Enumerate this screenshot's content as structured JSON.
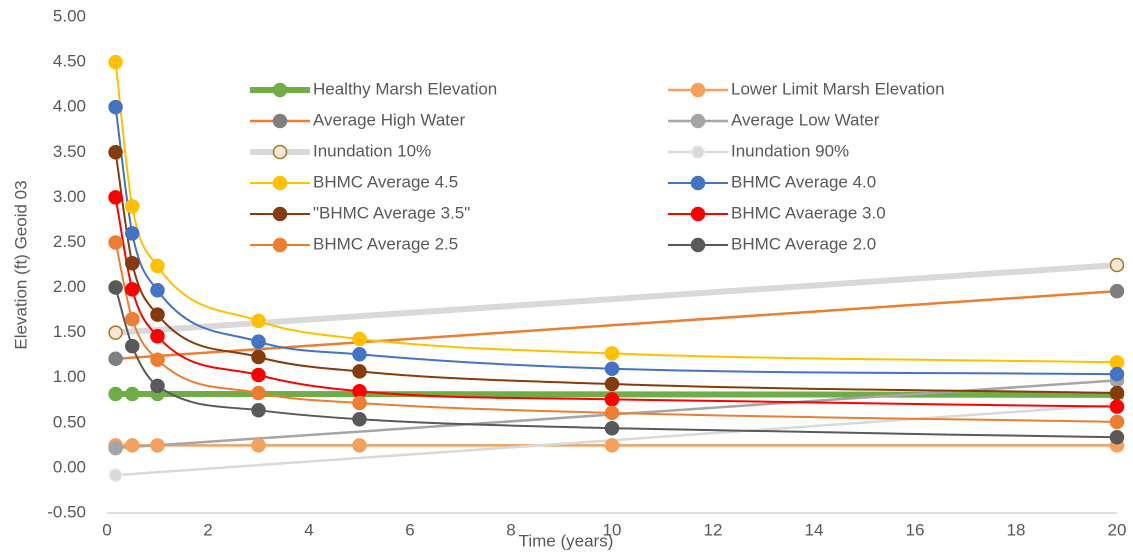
{
  "chart_data": {
    "type": "line",
    "x_label": "Time (years)",
    "y_label": "Elevation (ft) Geoid 03",
    "xlim": [
      0,
      20
    ],
    "xticks": [
      0,
      2,
      4,
      6,
      8,
      10,
      12,
      14,
      16,
      18,
      20
    ],
    "ylim": [
      -0.5,
      5
    ],
    "yticks": [
      {
        "value": -0.5,
        "label": "-0.50"
      },
      {
        "value": 0,
        "label": "0.00"
      },
      {
        "value": 0.5,
        "label": "0.50"
      },
      {
        "value": 1,
        "label": "1.00"
      },
      {
        "value": 1.5,
        "label": "1.50"
      },
      {
        "value": 2,
        "label": "2.00"
      },
      {
        "value": 2.5,
        "label": "2.50"
      },
      {
        "value": 3,
        "label": "3.00"
      },
      {
        "value": 3.5,
        "label": "3.50"
      },
      {
        "value": 4,
        "label": "4.00"
      },
      {
        "value": 4.5,
        "label": "4.50"
      },
      {
        "value": 5,
        "label": "5.00"
      }
    ],
    "grid": false,
    "legend": "top",
    "series": [
      {
        "name": "Healthy Marsh Elevation",
        "color": "#70ad47",
        "marker_color": "#70ad47",
        "line_width": 6,
        "x": [
          0.17,
          0.5,
          1,
          20
        ],
        "values": [
          0.82,
          0.82,
          0.82,
          0.81
        ]
      },
      {
        "name": "Lower Limit Marsh Elevation",
        "color": "#f4a15d",
        "marker_color": "#f4a15d",
        "line_width": 2.5,
        "x": [
          0.17,
          0.5,
          1,
          3,
          5,
          10,
          20
        ],
        "values": [
          0.25,
          0.25,
          0.25,
          0.25,
          0.25,
          0.25,
          0.25
        ]
      },
      {
        "name": "Average High Water",
        "color": "#ed7d31",
        "marker_color": "#7f7f7f",
        "line_width": 2.5,
        "x": [
          0.17,
          20
        ],
        "values": [
          1.21,
          1.96
        ]
      },
      {
        "name": "Average Low Water",
        "color": "#a5a5a5",
        "marker_color": "#a5a5a5",
        "line_width": 2.5,
        "x": [
          0.17,
          20
        ],
        "values": [
          0.22,
          0.97
        ]
      },
      {
        "name": "Inundation 10%",
        "color": "#d9d9d9",
        "marker_color": "#fbe5d6",
        "marker_edge": "#9c7b24",
        "line_width": 6,
        "x": [
          0.17,
          20
        ],
        "values": [
          1.5,
          2.25
        ]
      },
      {
        "name": "Inundation 90%",
        "color": "#d9d9d9",
        "marker_color": "#d9d9d9",
        "marker_edge": "#f2f2f2",
        "line_width": 2.5,
        "x": [
          0.17,
          20
        ],
        "values": [
          -0.08,
          0.7
        ]
      },
      {
        "name": "BHMC Average 4.5",
        "color": "#ffc000",
        "marker_color": "#ffc000",
        "line_width": 2,
        "x": [
          0.17,
          0.5,
          1,
          3,
          5,
          10,
          20
        ],
        "values": [
          4.5,
          2.9,
          2.24,
          1.63,
          1.43,
          1.27,
          1.17
        ]
      },
      {
        "name": "BHMC Average 4.0",
        "color": "#4472c4",
        "marker_color": "#4472c4",
        "line_width": 2,
        "x": [
          0.17,
          0.5,
          1,
          3,
          5,
          10,
          20
        ],
        "values": [
          4.0,
          2.6,
          1.97,
          1.4,
          1.26,
          1.1,
          1.04
        ]
      },
      {
        "name": "\"BHMC Average 3.5\"",
        "color": "#843c0c",
        "marker_color": "#843c0c",
        "line_width": 2,
        "x": [
          0.17,
          0.5,
          1,
          3,
          5,
          10,
          20
        ],
        "values": [
          3.5,
          2.27,
          1.7,
          1.23,
          1.07,
          0.93,
          0.83
        ]
      },
      {
        "name": "BHMC Avaerage 3.0",
        "color": "#ff0000",
        "marker_color": "#ff0000",
        "line_width": 2,
        "x": [
          0.17,
          0.5,
          1,
          3,
          5,
          10,
          20
        ],
        "values": [
          3.0,
          1.98,
          1.46,
          1.03,
          0.85,
          0.76,
          0.68
        ]
      },
      {
        "name": "BHMC Average 2.5",
        "color": "#ed7d31",
        "marker_color": "#ed7d31",
        "line_width": 2,
        "x": [
          0.17,
          0.5,
          1,
          3,
          5,
          10,
          20
        ],
        "values": [
          2.5,
          1.65,
          1.2,
          0.83,
          0.72,
          0.61,
          0.51
        ]
      },
      {
        "name": "BHMC Average 2.0",
        "color": "#595959",
        "marker_color": "#595959",
        "line_width": 2,
        "x": [
          0.17,
          0.5,
          1,
          3,
          5,
          10,
          20
        ],
        "values": [
          2.0,
          1.35,
          0.91,
          0.64,
          0.54,
          0.44,
          0.34
        ]
      }
    ]
  }
}
